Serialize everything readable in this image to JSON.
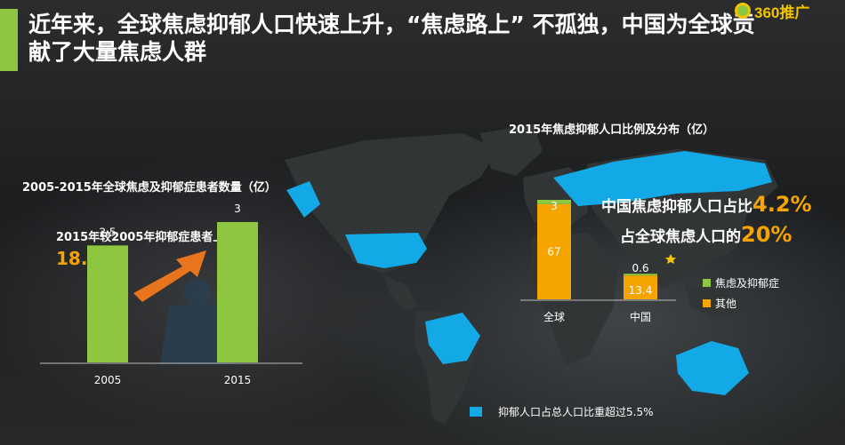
{
  "header": {
    "title": "近年来，全球焦虑抑郁人口快速上升，“焦虑路上” 不孤独，中国为全球贡献了大量焦虑人群",
    "logo_text": "360推广"
  },
  "colors": {
    "green": "#8dc63f",
    "orange": "#f5a400",
    "blue": "#13a9e6",
    "highlight": "#f5a400"
  },
  "chart_data": [
    {
      "type": "bar",
      "title": "2005-2015年全球焦虑及抑郁症患者数量（亿）",
      "categories": [
        "2005",
        "2015"
      ],
      "values": [
        2.5,
        3
      ],
      "value_labels": [
        "2.5",
        "3"
      ],
      "annotation": {
        "text": "2015年较2005年抑郁症患者上升",
        "value": "18.4%"
      },
      "ylim": [
        0,
        3
      ]
    },
    {
      "type": "bar",
      "title": "2015年焦虑抑郁人口比例及分布（亿）",
      "stacked": true,
      "categories": [
        "全球",
        "中国"
      ],
      "series": [
        {
          "name": "其他",
          "values": [
            67,
            13.4
          ],
          "labels": [
            "67",
            "13.4"
          ]
        },
        {
          "name": "焦虑及抑郁症",
          "values": [
            3,
            0.6
          ],
          "labels": [
            "3",
            "0.6"
          ]
        }
      ],
      "legend_position": "right",
      "callouts": [
        {
          "text": "中国焦虑抑郁人口占比",
          "value": "4.2%"
        },
        {
          "text": "占全球焦虑人口的",
          "value": "20%"
        }
      ]
    }
  ],
  "map_legend": {
    "label": "抑郁人口占总人口比重超过5.5%"
  }
}
